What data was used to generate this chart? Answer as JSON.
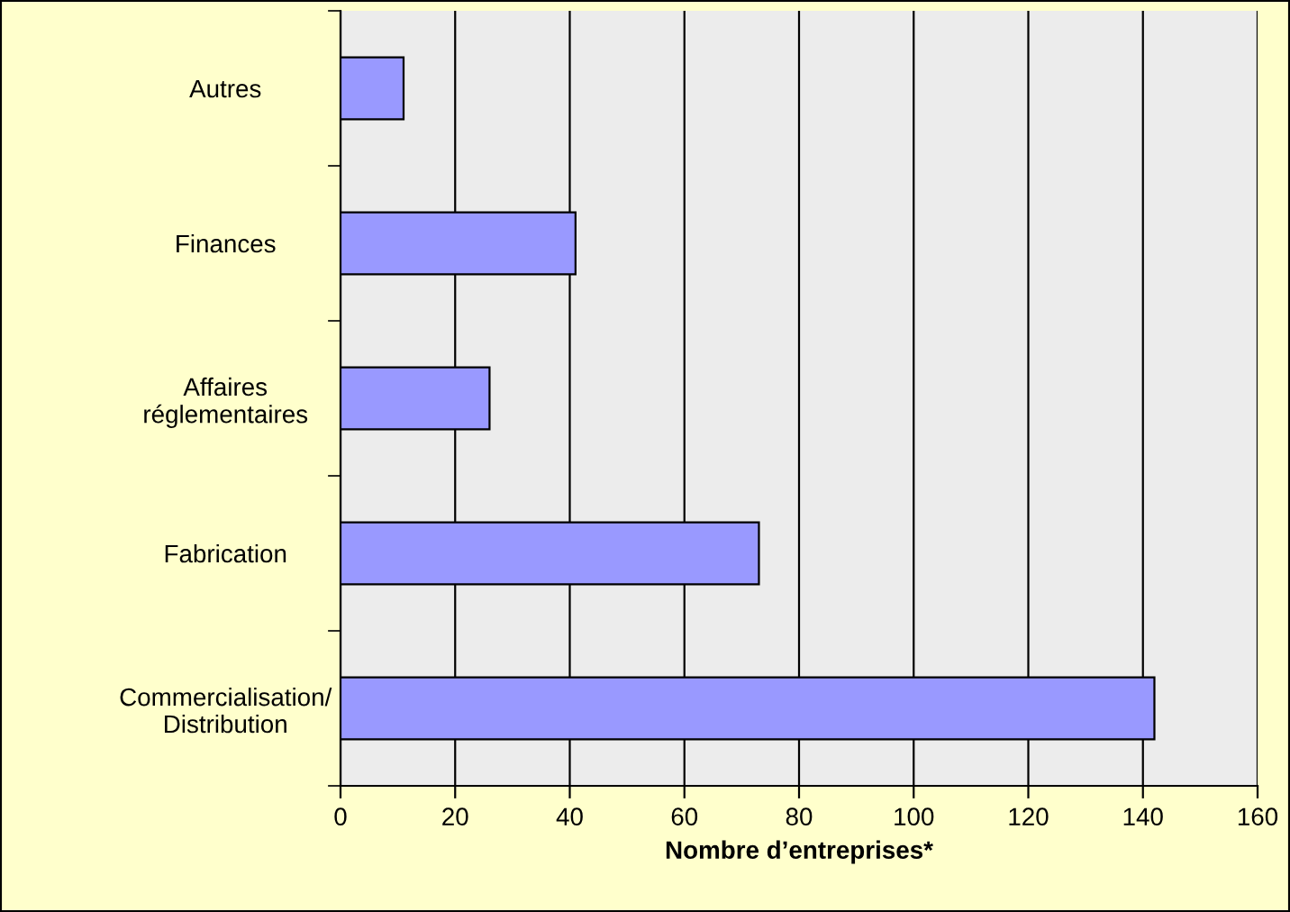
{
  "chart_data": {
    "type": "bar",
    "orientation": "horizontal",
    "xlabel": "Nombre d’entreprises*",
    "categories": [
      "Autres",
      "Finances",
      "Affaires\nréglementaires",
      "Fabrication",
      "Commercialisation/\nDistribution"
    ],
    "values": [
      11,
      41,
      26,
      73,
      142
    ],
    "color": "#9999ff",
    "xlim": [
      0,
      160
    ],
    "xticks": [
      0,
      20,
      40,
      60,
      80,
      100,
      120,
      140,
      160
    ],
    "grid": "x"
  }
}
